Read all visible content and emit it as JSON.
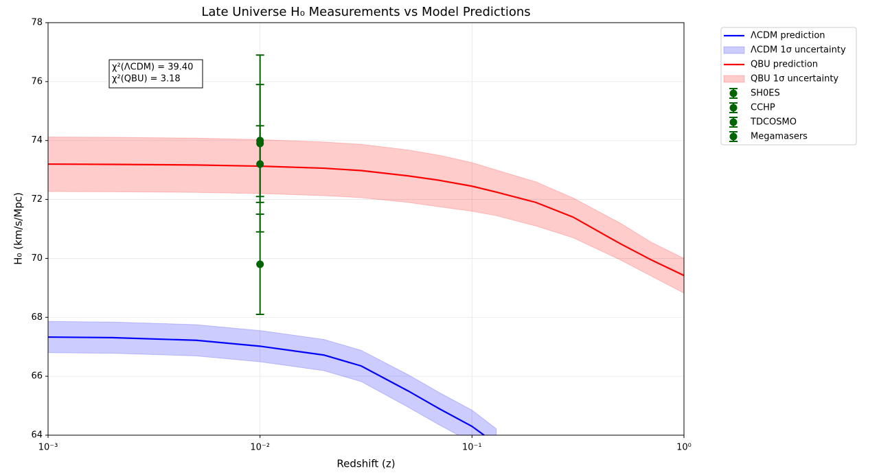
{
  "chart_data": {
    "type": "line",
    "title": "Late Universe H₀ Measurements vs Model Predictions",
    "xlabel": "Redshift (z)",
    "ylabel": "H₀ (km/s/Mpc)",
    "xscale": "log",
    "grid": true,
    "legend": "outside right",
    "xlim": [
      0.001,
      1
    ],
    "ylim": [
      64,
      78
    ],
    "xticks": [
      {
        "value": 0.001,
        "label": "10⁻³"
      },
      {
        "value": 0.01,
        "label": "10⁻²"
      },
      {
        "value": 0.1,
        "label": "10⁻¹"
      },
      {
        "value": 1,
        "label": "10⁰"
      }
    ],
    "yticks": [
      64,
      66,
      68,
      70,
      72,
      74,
      76,
      78
    ],
    "annotation": [
      "χ²(ΛCDM) = 39.40",
      "χ²(QBU) = 3.18"
    ],
    "x": [
      0.001,
      0.002,
      0.005,
      0.01,
      0.02,
      0.03,
      0.05,
      0.07,
      0.1,
      0.13,
      0.2,
      0.3,
      0.5,
      0.7,
      1.0
    ],
    "series": [
      {
        "name": "ΛCDM prediction",
        "type": "line",
        "color": "#0000ff",
        "values": [
          67.33,
          67.31,
          67.22,
          67.02,
          66.72,
          66.35,
          65.5,
          64.9,
          64.3,
          63.7,
          null,
          null,
          null,
          null,
          null
        ]
      },
      {
        "name": "ΛCDM 1σ uncertainty",
        "type": "band",
        "color": "#0000ff",
        "upper": [
          67.86,
          67.84,
          67.75,
          67.55,
          67.25,
          66.88,
          66.05,
          65.45,
          64.85,
          64.22,
          null,
          null,
          null,
          null,
          null
        ],
        "lower": [
          66.8,
          66.78,
          66.69,
          66.49,
          66.19,
          65.82,
          64.95,
          64.35,
          63.75,
          63.18,
          null,
          null,
          null,
          null,
          null
        ]
      },
      {
        "name": "QBU prediction",
        "type": "line",
        "color": "#ff0000",
        "values": [
          73.2,
          73.19,
          73.17,
          73.13,
          73.06,
          72.98,
          72.8,
          72.65,
          72.45,
          72.25,
          71.9,
          71.4,
          70.5,
          69.95,
          69.42
        ]
      },
      {
        "name": "QBU 1σ uncertainty",
        "type": "band",
        "color": "#ff0000",
        "upper": [
          74.12,
          74.11,
          74.08,
          74.03,
          73.95,
          73.87,
          73.68,
          73.5,
          73.25,
          73.0,
          72.6,
          72.05,
          71.2,
          70.55,
          70.0
        ],
        "lower": [
          72.27,
          72.26,
          72.24,
          72.2,
          72.13,
          72.06,
          71.9,
          71.75,
          71.6,
          71.45,
          71.1,
          70.7,
          69.95,
          69.4,
          68.82
        ]
      },
      {
        "name": "SH0ES",
        "type": "errorbar",
        "color": "#006400",
        "x": [
          0.01
        ],
        "values": [
          73.2
        ],
        "errors": [
          1.3
        ]
      },
      {
        "name": "CCHP",
        "type": "errorbar",
        "color": "#006400",
        "x": [
          0.01
        ],
        "values": [
          69.8
        ],
        "errors": [
          1.7
        ]
      },
      {
        "name": "TDCOSMO",
        "type": "errorbar",
        "color": "#006400",
        "x": [
          0.01
        ],
        "values": [
          74.0
        ],
        "errors": [
          1.9
        ]
      },
      {
        "name": "Megamasers",
        "type": "errorbar",
        "color": "#006400",
        "x": [
          0.01
        ],
        "values": [
          73.9
        ],
        "errors": [
          3.0
        ]
      }
    ]
  }
}
